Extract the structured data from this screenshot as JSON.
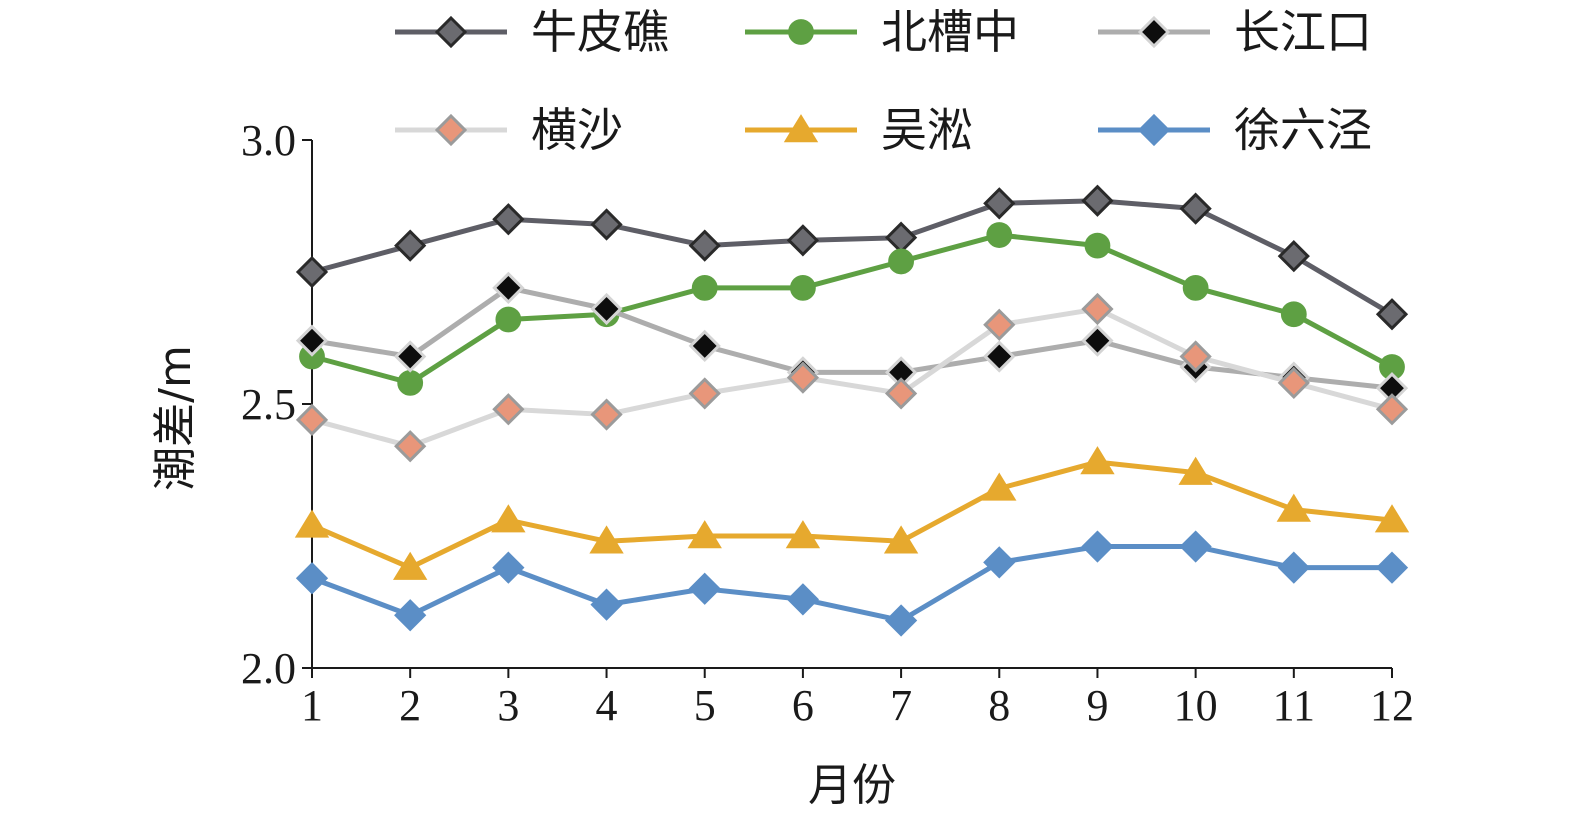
{
  "chart_data": {
    "type": "line",
    "title": "",
    "xlabel": "月份",
    "ylabel": "潮差/m",
    "x": [
      1,
      2,
      3,
      4,
      5,
      6,
      7,
      8,
      9,
      10,
      11,
      12
    ],
    "x_tick_labels": [
      "1",
      "2",
      "3",
      "4",
      "5",
      "6",
      "7",
      "8",
      "9",
      "10",
      "11",
      "12"
    ],
    "ylim": [
      2.0,
      3.0
    ],
    "y_ticks": [
      2.0,
      2.5,
      3.0
    ],
    "y_tick_labels": [
      "2.0",
      "2.5",
      "3.0"
    ],
    "grid": false,
    "legend_position": "top",
    "series": [
      {
        "name": "牛皮礁",
        "color": "#5e5e66",
        "marker": "diamond",
        "marker_fill": "#6b6b70",
        "marker_stroke": "#2a2a2a",
        "values": [
          2.75,
          2.8,
          2.85,
          2.84,
          2.8,
          2.81,
          2.815,
          2.88,
          2.885,
          2.87,
          2.78,
          2.67
        ]
      },
      {
        "name": "北槽中",
        "color": "#5ea043",
        "marker": "circle",
        "marker_fill": "#5ea043",
        "marker_stroke": "#5ea043",
        "values": [
          2.59,
          2.54,
          2.66,
          2.67,
          2.72,
          2.72,
          2.77,
          2.82,
          2.8,
          2.72,
          2.67,
          2.57
        ]
      },
      {
        "name": "长江口",
        "color": "#adadad",
        "marker": "diamond",
        "marker_fill": "#0d0d0d",
        "marker_stroke": "#d4d4d4",
        "values": [
          2.62,
          2.59,
          2.72,
          2.68,
          2.61,
          2.56,
          2.56,
          2.59,
          2.62,
          2.57,
          2.55,
          2.53
        ]
      },
      {
        "name": "横沙",
        "color": "#d8d8d8",
        "marker": "diamond",
        "marker_fill": "#e8967a",
        "marker_stroke": "#9b9b9b",
        "values": [
          2.47,
          2.42,
          2.49,
          2.48,
          2.52,
          2.55,
          2.52,
          2.65,
          2.68,
          2.59,
          2.54,
          2.49
        ]
      },
      {
        "name": "吴淞",
        "color": "#e6a92e",
        "marker": "triangle",
        "marker_fill": "#e6a92e",
        "marker_stroke": "#e6a92e",
        "values": [
          2.27,
          2.19,
          2.28,
          2.24,
          2.25,
          2.25,
          2.24,
          2.34,
          2.39,
          2.37,
          2.3,
          2.28
        ]
      },
      {
        "name": "徐六泾",
        "color": "#5b8ec6",
        "marker": "diamond",
        "marker_fill": "#5b8ec6",
        "marker_stroke": "#5b8ec6",
        "values": [
          2.17,
          2.1,
          2.19,
          2.12,
          2.15,
          2.13,
          2.09,
          2.2,
          2.23,
          2.23,
          2.19,
          2.19
        ]
      }
    ]
  }
}
